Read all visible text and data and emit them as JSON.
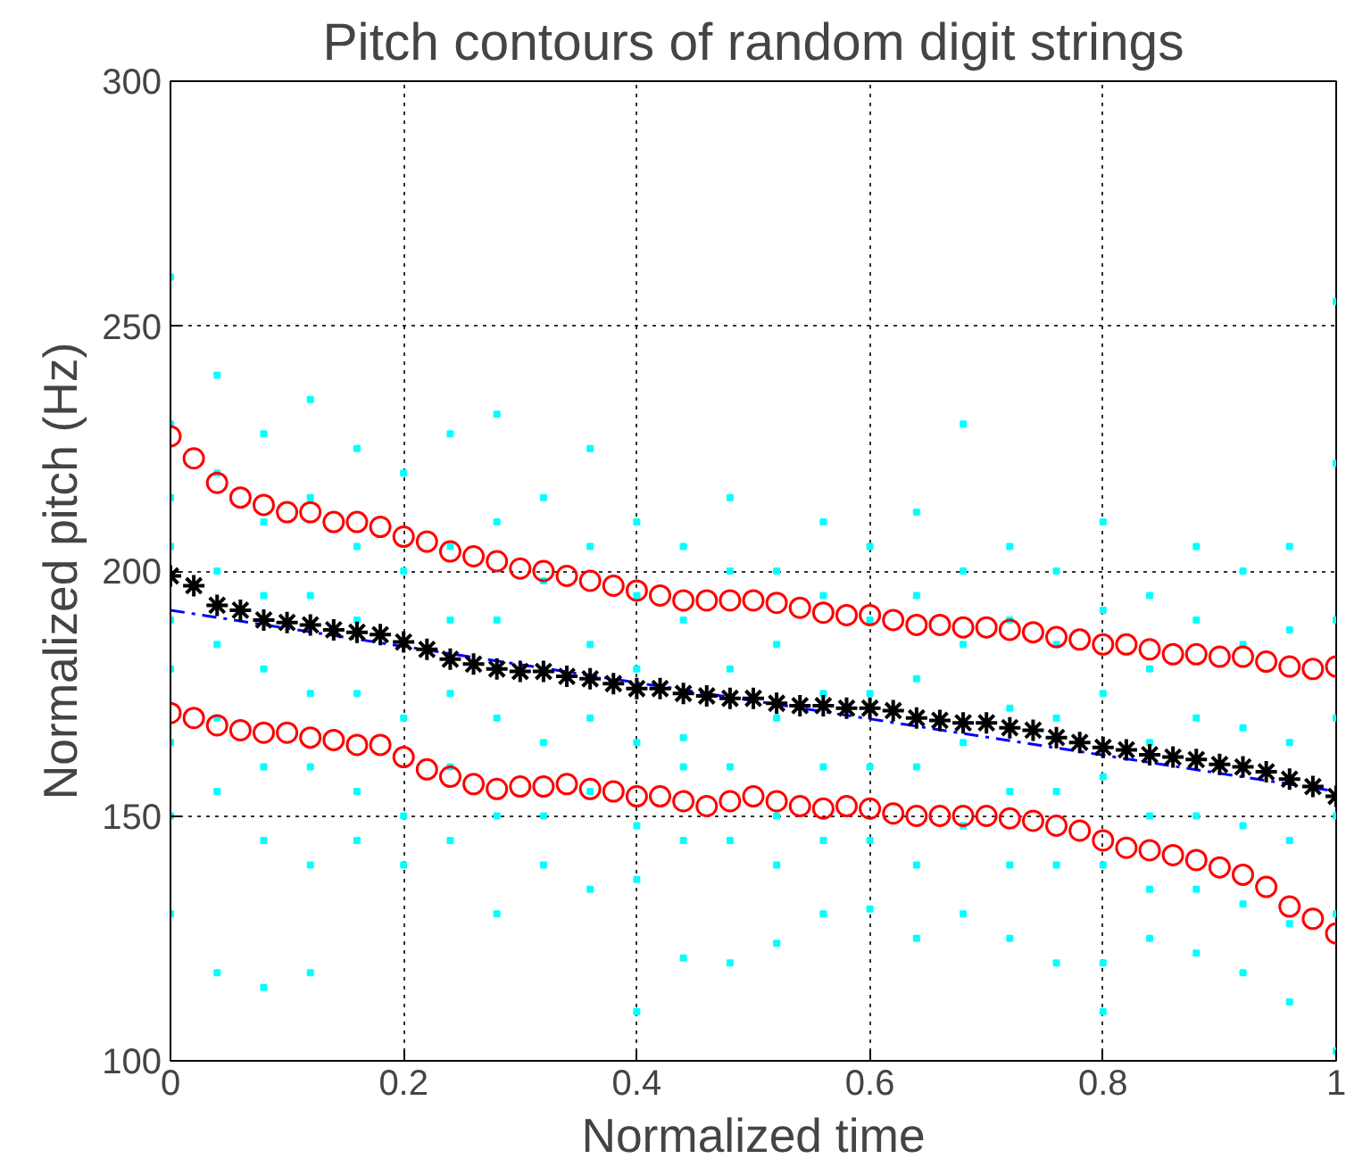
{
  "chart_data": {
    "type": "scatter",
    "title": "Pitch contours of random digit strings",
    "xlabel": "Normalized time",
    "ylabel": "Normalized pitch (Hz)",
    "xlim": [
      0,
      1
    ],
    "ylim": [
      100,
      300
    ],
    "xticks": [
      0,
      0.2,
      0.4,
      0.6,
      0.8,
      1
    ],
    "yticks": [
      100,
      150,
      200,
      250,
      300
    ],
    "grid": true,
    "series": [
      {
        "marker": "square",
        "color": "#00ffff",
        "x": [
          0,
          0,
          0,
          0,
          0,
          0,
          0,
          0,
          0,
          0.04,
          0.04,
          0.04,
          0.04,
          0.04,
          0.04,
          0.04,
          0.08,
          0.08,
          0.08,
          0.08,
          0.08,
          0.08,
          0.08,
          0.12,
          0.12,
          0.12,
          0.12,
          0.12,
          0.12,
          0.12,
          0.16,
          0.16,
          0.16,
          0.16,
          0.16,
          0.16,
          0.2,
          0.2,
          0.2,
          0.2,
          0.2,
          0.2,
          0.24,
          0.24,
          0.24,
          0.24,
          0.24,
          0.24,
          0.28,
          0.28,
          0.28,
          0.28,
          0.28,
          0.28,
          0.32,
          0.32,
          0.32,
          0.32,
          0.32,
          0.32,
          0.36,
          0.36,
          0.36,
          0.36,
          0.36,
          0.36,
          0.4,
          0.4,
          0.4,
          0.4,
          0.4,
          0.4,
          0.4,
          0.44,
          0.44,
          0.44,
          0.44,
          0.44,
          0.44,
          0.48,
          0.48,
          0.48,
          0.48,
          0.48,
          0.48,
          0.52,
          0.52,
          0.52,
          0.52,
          0.52,
          0.52,
          0.56,
          0.56,
          0.56,
          0.56,
          0.56,
          0.56,
          0.6,
          0.6,
          0.6,
          0.6,
          0.6,
          0.6,
          0.64,
          0.64,
          0.64,
          0.64,
          0.64,
          0.64,
          0.68,
          0.68,
          0.68,
          0.68,
          0.68,
          0.68,
          0.72,
          0.72,
          0.72,
          0.72,
          0.72,
          0.72,
          0.76,
          0.76,
          0.76,
          0.76,
          0.76,
          0.76,
          0.8,
          0.8,
          0.8,
          0.8,
          0.8,
          0.8,
          0.8,
          0.84,
          0.84,
          0.84,
          0.84,
          0.84,
          0.84,
          0.88,
          0.88,
          0.88,
          0.88,
          0.88,
          0.88,
          0.92,
          0.92,
          0.92,
          0.92,
          0.92,
          0.92,
          0.96,
          0.96,
          0.96,
          0.96,
          0.96,
          0.96,
          1,
          1,
          1,
          1,
          1,
          1,
          1
        ],
        "values": [
          260,
          230,
          215,
          205,
          190,
          180,
          165,
          150,
          130,
          240,
          220,
          200,
          185,
          170,
          155,
          118,
          228,
          210,
          195,
          180,
          160,
          145,
          115,
          235,
          215,
          195,
          175,
          160,
          140,
          118,
          225,
          205,
          190,
          175,
          155,
          145,
          220,
          200,
          185,
          170,
          150,
          140,
          228,
          205,
          190,
          175,
          160,
          145,
          232,
          210,
          190,
          170,
          150,
          130,
          215,
          198,
          180,
          165,
          150,
          140,
          225,
          205,
          185,
          170,
          155,
          135,
          210,
          195,
          180,
          165,
          148,
          137,
          110,
          205,
          190,
          166,
          160,
          145,
          121,
          215,
          200,
          180,
          160,
          145,
          120,
          200,
          185,
          170,
          150,
          140,
          124,
          210,
          195,
          175,
          160,
          145,
          130,
          205,
          190,
          175,
          160,
          145,
          131,
          212,
          195,
          178,
          160,
          140,
          125,
          230,
          200,
          185,
          165,
          148,
          130,
          205,
          190,
          172,
          155,
          140,
          125,
          200,
          185,
          170,
          155,
          140,
          120,
          210,
          192,
          175,
          158,
          140,
          120,
          110,
          195,
          180,
          165,
          150,
          135,
          125,
          205,
          190,
          170,
          150,
          135,
          122,
          200,
          185,
          168,
          148,
          132,
          118,
          205,
          188,
          165,
          145,
          128,
          112,
          255,
          222,
          190,
          170,
          150,
          130,
          102
        ]
      },
      {
        "type": "line",
        "line_style": "dashed",
        "color": "#0000ff",
        "x": [
          0,
          1
        ],
        "values": [
          192,
          155
        ]
      },
      {
        "marker": "circle",
        "color": "#ff0000",
        "values": [
          227.5,
          223,
          218,
          215,
          213.5,
          212,
          212,
          210,
          210,
          209,
          207,
          206,
          204,
          203,
          202,
          200.5,
          200,
          199,
          198,
          197,
          196,
          195,
          194,
          194,
          194,
          194,
          193.5,
          192.5,
          191.5,
          191,
          191,
          190,
          189,
          189,
          188.5,
          188.5,
          188,
          187.5,
          186.5,
          186,
          185,
          185,
          184,
          183,
          183,
          182.5,
          182.5,
          181.5,
          180.5,
          180,
          180.5
        ]
      },
      {
        "marker": "cross",
        "color": "#000000",
        "values": [
          199,
          197,
          193,
          192,
          190,
          189.5,
          189,
          188,
          187.5,
          187,
          185.5,
          184,
          182,
          181,
          180,
          179.5,
          179.5,
          178.5,
          178,
          177,
          176,
          176,
          175,
          174.5,
          174,
          174,
          173,
          172.5,
          172.5,
          172,
          172,
          171.5,
          170,
          169.5,
          169,
          169,
          168,
          167.5,
          166,
          165,
          164,
          163.5,
          162.5,
          162,
          161.5,
          160.5,
          160,
          159,
          157.5,
          156,
          154
        ]
      },
      {
        "marker": "circle",
        "color": "#ff0000",
        "values": [
          171,
          170,
          168.5,
          167.5,
          167,
          167,
          166,
          165.5,
          164.5,
          164.5,
          162,
          159.5,
          158,
          156.5,
          155.5,
          156,
          156,
          156.5,
          155.5,
          155,
          154,
          154,
          153,
          152,
          153,
          154,
          153,
          152,
          151.5,
          152,
          151.5,
          150.5,
          150,
          150,
          150,
          150,
          149.5,
          149,
          148,
          147,
          145,
          143.5,
          143,
          142,
          141,
          139.5,
          138,
          135.5,
          131.5,
          129,
          126
        ]
      }
    ],
    "x": [
      0,
      0.02,
      0.04,
      0.06,
      0.08,
      0.1,
      0.12,
      0.14,
      0.16,
      0.18,
      0.2,
      0.22,
      0.24,
      0.26,
      0.28,
      0.3,
      0.32,
      0.34,
      0.36,
      0.38,
      0.4,
      0.42,
      0.44,
      0.46,
      0.48,
      0.5,
      0.52,
      0.54,
      0.56,
      0.58,
      0.6,
      0.62,
      0.64,
      0.66,
      0.68,
      0.7,
      0.72,
      0.74,
      0.76,
      0.78,
      0.8,
      0.82,
      0.84,
      0.86,
      0.88,
      0.9,
      0.92,
      0.94,
      0.96,
      0.98,
      1
    ]
  }
}
